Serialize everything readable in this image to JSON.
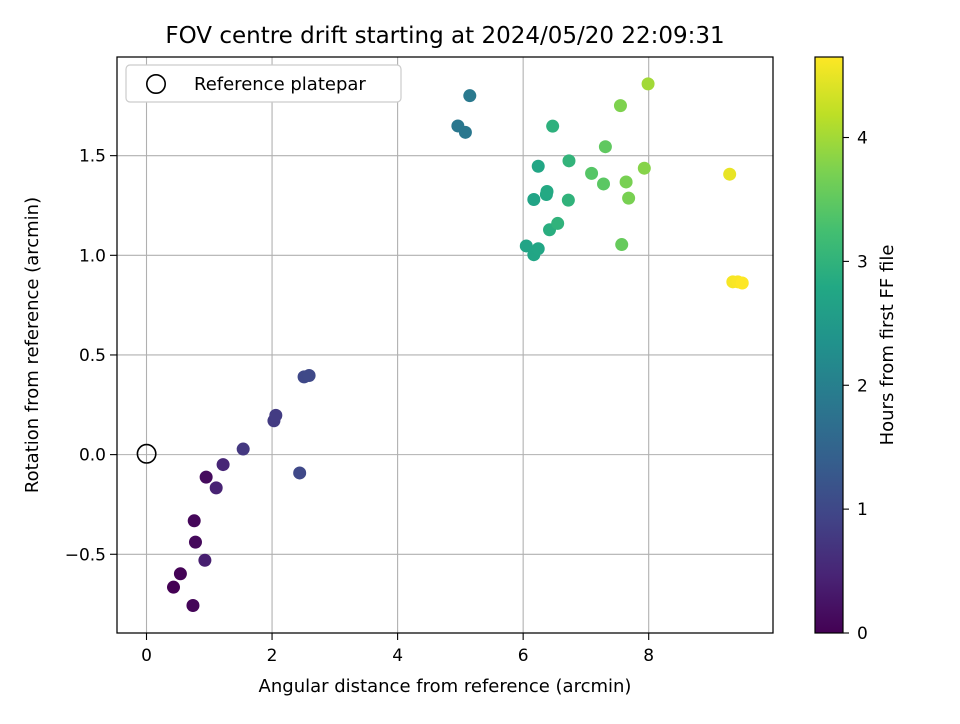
{
  "chart_data": {
    "type": "scatter",
    "title": "FOV centre drift starting at 2024/05/20 22:09:31",
    "xlabel": "Angular distance from reference (arcmin)",
    "ylabel": "Rotation from reference (arcmin)",
    "xlim": [
      -0.47,
      9.98
    ],
    "ylim": [
      -0.895,
      1.995
    ],
    "xticks": [
      0,
      2,
      4,
      6,
      8
    ],
    "xtick_labels": [
      "0",
      "2",
      "4",
      "6",
      "8"
    ],
    "yticks": [
      -0.5,
      0.0,
      0.5,
      1.0,
      1.5
    ],
    "ytick_labels": [
      "−0.5",
      "0.0",
      "0.5",
      "1.0",
      "1.5"
    ],
    "grid": true,
    "legend": {
      "position": "top-left",
      "entries": [
        "Reference platepar"
      ]
    },
    "reference_point": {
      "x": 0,
      "y": 0
    },
    "colorbar": {
      "label": "Hours from first FF file",
      "colormap": "viridis",
      "range": [
        0,
        4.65
      ],
      "ticks": [
        0,
        1,
        2,
        3,
        4
      ],
      "tick_labels": [
        "0",
        "1",
        "2",
        "3",
        "4"
      ]
    },
    "points": [
      {
        "x": 0.43,
        "y": -0.665,
        "hours": 0.0
      },
      {
        "x": 0.54,
        "y": -0.598,
        "hours": 0.03
      },
      {
        "x": 0.74,
        "y": -0.757,
        "hours": 0.05
      },
      {
        "x": 0.76,
        "y": -0.332,
        "hours": 0.08
      },
      {
        "x": 0.78,
        "y": -0.439,
        "hours": 0.1
      },
      {
        "x": 0.95,
        "y": -0.113,
        "hours": 0.13
      },
      {
        "x": 0.93,
        "y": -0.53,
        "hours": 0.4
      },
      {
        "x": 1.11,
        "y": -0.167,
        "hours": 0.45
      },
      {
        "x": 1.22,
        "y": -0.05,
        "hours": 0.5
      },
      {
        "x": 1.54,
        "y": 0.028,
        "hours": 0.75
      },
      {
        "x": 2.03,
        "y": 0.17,
        "hours": 0.8
      },
      {
        "x": 2.06,
        "y": 0.197,
        "hours": 0.82
      },
      {
        "x": 2.44,
        "y": -0.092,
        "hours": 1.0
      },
      {
        "x": 2.51,
        "y": 0.39,
        "hours": 1.0
      },
      {
        "x": 2.59,
        "y": 0.397,
        "hours": 1.02
      },
      {
        "x": 4.96,
        "y": 1.649,
        "hours": 1.85
      },
      {
        "x": 5.08,
        "y": 1.617,
        "hours": 1.85
      },
      {
        "x": 5.15,
        "y": 1.801,
        "hours": 1.88
      },
      {
        "x": 6.05,
        "y": 1.047,
        "hours": 2.7
      },
      {
        "x": 6.17,
        "y": 1.003,
        "hours": 2.72
      },
      {
        "x": 6.24,
        "y": 1.033,
        "hours": 2.75
      },
      {
        "x": 6.17,
        "y": 1.28,
        "hours": 2.7
      },
      {
        "x": 6.24,
        "y": 1.447,
        "hours": 2.75
      },
      {
        "x": 6.37,
        "y": 1.305,
        "hours": 2.8
      },
      {
        "x": 6.38,
        "y": 1.32,
        "hours": 2.82
      },
      {
        "x": 6.42,
        "y": 1.128,
        "hours": 2.9
      },
      {
        "x": 6.47,
        "y": 1.648,
        "hours": 2.95
      },
      {
        "x": 6.55,
        "y": 1.16,
        "hours": 3.0
      },
      {
        "x": 6.72,
        "y": 1.277,
        "hours": 3.0
      },
      {
        "x": 6.73,
        "y": 1.474,
        "hours": 3.02
      },
      {
        "x": 7.09,
        "y": 1.411,
        "hours": 3.4
      },
      {
        "x": 7.28,
        "y": 1.358,
        "hours": 3.45
      },
      {
        "x": 7.31,
        "y": 1.545,
        "hours": 3.5
      },
      {
        "x": 7.57,
        "y": 1.054,
        "hours": 3.55
      },
      {
        "x": 7.64,
        "y": 1.368,
        "hours": 3.7
      },
      {
        "x": 7.68,
        "y": 1.287,
        "hours": 3.7
      },
      {
        "x": 7.55,
        "y": 1.751,
        "hours": 3.75
      },
      {
        "x": 7.93,
        "y": 1.437,
        "hours": 3.8
      },
      {
        "x": 7.99,
        "y": 1.86,
        "hours": 4.0
      },
      {
        "x": 9.29,
        "y": 1.407,
        "hours": 4.5
      },
      {
        "x": 9.34,
        "y": 0.867,
        "hours": 4.6
      },
      {
        "x": 9.42,
        "y": 0.867,
        "hours": 4.62
      },
      {
        "x": 9.49,
        "y": 0.861,
        "hours": 4.65
      }
    ]
  }
}
